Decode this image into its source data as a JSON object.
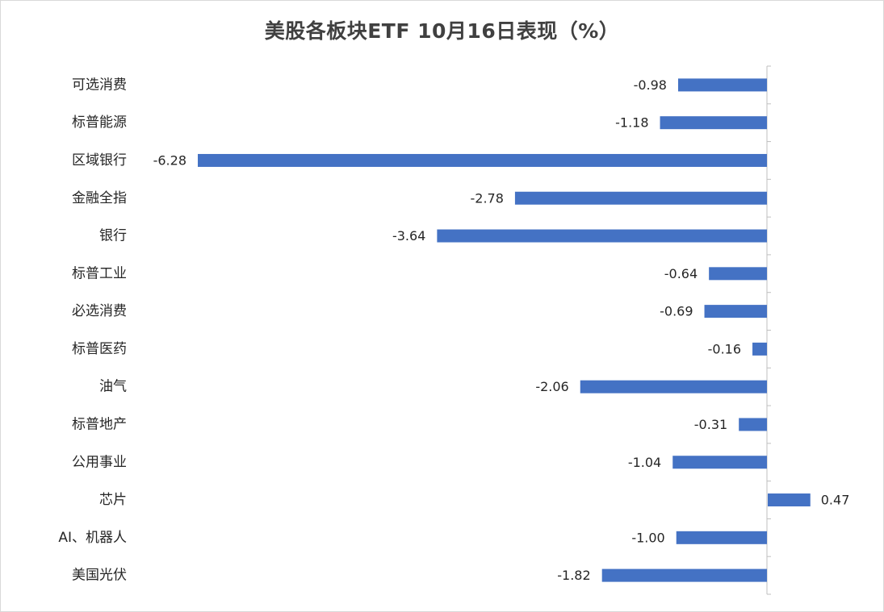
{
  "chart_data": {
    "type": "bar",
    "orientation": "horizontal",
    "title": "美股各板块ETF  10月16日表现（%）",
    "categories": [
      "可选消费",
      "标普能源",
      "区域银行",
      "金融全指",
      "银行",
      "标普工业",
      "必选消费",
      "标普医药",
      "油气",
      "标普地产",
      "公用事业",
      "芯片",
      "AI、机器人",
      "美国光伏"
    ],
    "values": [
      -0.98,
      -1.18,
      -6.28,
      -2.78,
      -3.64,
      -0.64,
      -0.69,
      -0.16,
      -2.06,
      -0.31,
      -1.04,
      0.47,
      -1.0,
      -1.82
    ],
    "value_labels": [
      "-0.98",
      "-1.18",
      "-6.28",
      "-2.78",
      "-3.64",
      "-0.64",
      "-0.69",
      "-0.16",
      "-2.06",
      "-0.31",
      "-1.04",
      "0.47",
      "-1.00",
      "-1.82"
    ],
    "xlabel": "",
    "ylabel": "",
    "xlim": [
      -6.28,
      0.47
    ],
    "grid": false,
    "legend": "none",
    "bar_color": "#4472c4",
    "axis_color": "#bfbfbf",
    "text_color": "#262626",
    "title_color": "#404040"
  }
}
